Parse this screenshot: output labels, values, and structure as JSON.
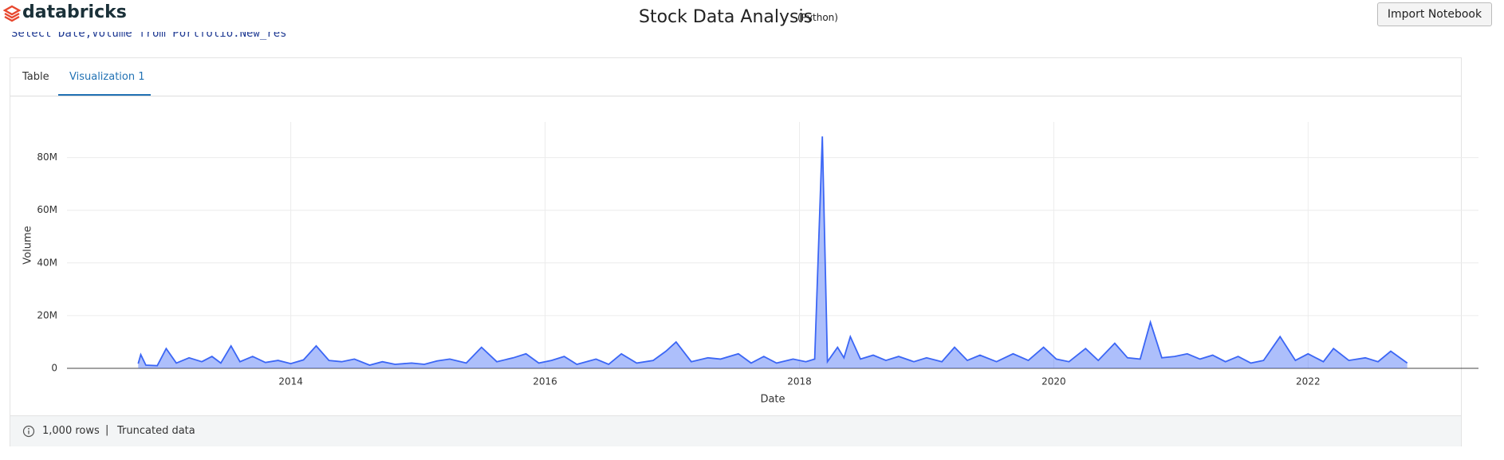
{
  "header": {
    "logo": "databricks",
    "title": "Stock Data Analysis",
    "language": "(Python)",
    "button": "Import Notebook"
  },
  "code": "Select Date,Volume from Portfolio.New_res",
  "tabs": [
    "Table",
    "Visualization 1"
  ],
  "chart_data": {
    "type": "area",
    "x_label": "Date",
    "y_label": "Volume",
    "xlim": [
      2012.24,
      2023.34
    ],
    "xticks": [
      2014,
      2016,
      2018,
      2020,
      2022
    ],
    "ylim": [
      0,
      93500000
    ],
    "yticks": [
      0,
      {
        "value": 20000000,
        "label": "20M"
      },
      {
        "value": 40000000,
        "label": "40M"
      },
      {
        "value": 60000000,
        "label": "60M"
      },
      {
        "value": 80000000,
        "label": "80M"
      }
    ],
    "grid": true,
    "series": [
      {
        "name": "Volume",
        "color": "#3b66f5",
        "x": [
          2012.8,
          2012.82,
          2012.86,
          2012.95,
          2013.02,
          2013.1,
          2013.2,
          2013.3,
          2013.38,
          2013.45,
          2013.53,
          2013.6,
          2013.7,
          2013.8,
          2013.9,
          2014.0,
          2014.1,
          2014.2,
          2014.3,
          2014.4,
          2014.5,
          2014.62,
          2014.72,
          2014.82,
          2014.95,
          2015.05,
          2015.15,
          2015.25,
          2015.38,
          2015.5,
          2015.62,
          2015.75,
          2015.85,
          2015.95,
          2016.05,
          2016.15,
          2016.25,
          2016.4,
          2016.5,
          2016.6,
          2016.72,
          2016.85,
          2016.95,
          2017.03,
          2017.15,
          2017.28,
          2017.38,
          2017.52,
          2017.62,
          2017.72,
          2017.82,
          2017.95,
          2018.05,
          2018.12,
          2018.18,
          2018.22,
          2018.3,
          2018.35,
          2018.4,
          2018.48,
          2018.58,
          2018.68,
          2018.78,
          2018.9,
          2019.0,
          2019.12,
          2019.22,
          2019.32,
          2019.42,
          2019.55,
          2019.68,
          2019.8,
          2019.92,
          2020.02,
          2020.12,
          2020.25,
          2020.35,
          2020.48,
          2020.58,
          2020.68,
          2020.76,
          2020.85,
          2020.95,
          2021.05,
          2021.15,
          2021.25,
          2021.35,
          2021.45,
          2021.55,
          2021.65,
          2021.78,
          2021.9,
          2022.0,
          2022.12,
          2022.2,
          2022.32,
          2022.45,
          2022.55,
          2022.65,
          2022.78
        ],
        "values": [
          1800000,
          5200000,
          1200000,
          1000000,
          7500000,
          2000000,
          4000000,
          2500000,
          4500000,
          2000000,
          8500000,
          2500000,
          4500000,
          2200000,
          3000000,
          1800000,
          3200000,
          8500000,
          3000000,
          2500000,
          3500000,
          1200000,
          2500000,
          1500000,
          2000000,
          1500000,
          2800000,
          3500000,
          2000000,
          8000000,
          2500000,
          4000000,
          5500000,
          2000000,
          3000000,
          4500000,
          1500000,
          3500000,
          1500000,
          5500000,
          2000000,
          3000000,
          6500000,
          10000000,
          2500000,
          4000000,
          3500000,
          5500000,
          2000000,
          4500000,
          2000000,
          3500000,
          2500000,
          3500000,
          88000000,
          2500000,
          8000000,
          4000000,
          12000000,
          3500000,
          5000000,
          3000000,
          4500000,
          2500000,
          4000000,
          2500000,
          8000000,
          3000000,
          5000000,
          2500000,
          5500000,
          3000000,
          8000000,
          3500000,
          2500000,
          7500000,
          3000000,
          9500000,
          4000000,
          3500000,
          17500000,
          4000000,
          4500000,
          5500000,
          3500000,
          5000000,
          2500000,
          4500000,
          2000000,
          3000000,
          12000000,
          3000000,
          5500000,
          2500000,
          7500000,
          3000000,
          4000000,
          2500000,
          6500000,
          2000000
        ]
      }
    ]
  },
  "footer": {
    "rows": "1,000 rows",
    "note": "Truncated data"
  }
}
